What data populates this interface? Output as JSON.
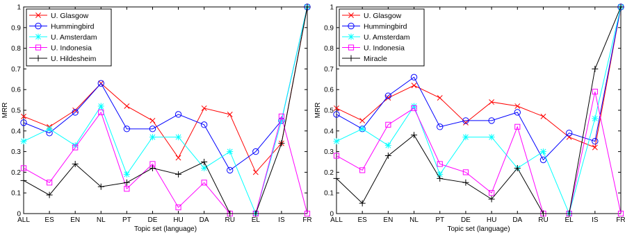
{
  "chart_data": [
    {
      "type": "line",
      "title": "",
      "xlabel": "Topic set (language)",
      "ylabel": "MRR",
      "ylim": [
        0,
        1
      ],
      "yticks": [
        0,
        0.1,
        0.2,
        0.3,
        0.4,
        0.5,
        0.6,
        0.7,
        0.8,
        0.9,
        1
      ],
      "grid": false,
      "legend_position": "top-left",
      "categories": [
        "ALL",
        "ES",
        "EN",
        "NL",
        "PT",
        "DE",
        "HU",
        "DA",
        "RU",
        "EL",
        "IS",
        "FR"
      ],
      "series": [
        {
          "name": "U. Glasgow",
          "color": "#ff0000",
          "marker": "x",
          "values": [
            0.47,
            0.42,
            0.5,
            0.63,
            0.52,
            0.45,
            0.27,
            0.51,
            0.48,
            0.2,
            0.34,
            1.0
          ]
        },
        {
          "name": "Hummingbird",
          "color": "#0000ff",
          "marker": "circle",
          "values": [
            0.44,
            0.39,
            0.49,
            0.63,
            0.41,
            0.41,
            0.48,
            0.43,
            0.21,
            0.3,
            0.45,
            1.0
          ]
        },
        {
          "name": "U. Amsterdam",
          "color": "#00ffff",
          "marker": "asterisk",
          "values": [
            0.35,
            0.41,
            0.33,
            0.52,
            0.19,
            0.37,
            0.37,
            0.22,
            0.3,
            0.0,
            0.45,
            1.0
          ]
        },
        {
          "name": "U. Indonesia",
          "color": "#ff00ff",
          "marker": "square",
          "values": [
            0.22,
            0.15,
            0.32,
            0.49,
            0.12,
            0.24,
            0.03,
            0.15,
            0.0,
            0.0,
            0.47,
            0.0
          ]
        },
        {
          "name": "U. Hildesheim",
          "color": "#000000",
          "marker": "plus",
          "values": [
            0.16,
            0.09,
            0.24,
            0.13,
            0.15,
            0.22,
            0.19,
            0.25,
            0.0,
            0.0,
            0.34,
            1.0
          ]
        }
      ]
    },
    {
      "type": "line",
      "title": "",
      "xlabel": "Topic set (language)",
      "ylabel": "MRR",
      "ylim": [
        0,
        1
      ],
      "yticks": [
        0,
        0.1,
        0.2,
        0.3,
        0.4,
        0.5,
        0.6,
        0.7,
        0.8,
        0.9,
        1
      ],
      "grid": false,
      "legend_position": "top-left",
      "categories": [
        "ALL",
        "ES",
        "EN",
        "NL",
        "PT",
        "DE",
        "HU",
        "DA",
        "RU",
        "EL",
        "IS",
        "FR"
      ],
      "series": [
        {
          "name": "U. Glasgow",
          "color": "#ff0000",
          "marker": "x",
          "values": [
            0.51,
            0.45,
            0.56,
            0.62,
            0.56,
            0.44,
            0.54,
            0.52,
            0.47,
            0.37,
            0.32,
            1.0
          ]
        },
        {
          "name": "Hummingbird",
          "color": "#0000ff",
          "marker": "circle",
          "values": [
            0.48,
            0.41,
            0.57,
            0.66,
            0.42,
            0.45,
            0.45,
            0.49,
            0.26,
            0.39,
            0.35,
            1.0
          ]
        },
        {
          "name": "U. Amsterdam",
          "color": "#00ffff",
          "marker": "asterisk",
          "values": [
            0.35,
            0.41,
            0.33,
            0.52,
            0.19,
            0.37,
            0.37,
            0.22,
            0.3,
            0.0,
            0.46,
            1.0
          ]
        },
        {
          "name": "U. Indonesia",
          "color": "#ff00ff",
          "marker": "square",
          "values": [
            0.28,
            0.21,
            0.43,
            0.51,
            0.24,
            0.2,
            0.1,
            0.42,
            0.0,
            0.0,
            0.59,
            0.0
          ]
        },
        {
          "name": "Miracle",
          "color": "#000000",
          "marker": "plus",
          "values": [
            0.17,
            0.05,
            0.28,
            0.38,
            0.17,
            0.15,
            0.07,
            0.22,
            0.0,
            0.0,
            0.7,
            1.0
          ]
        }
      ]
    }
  ]
}
